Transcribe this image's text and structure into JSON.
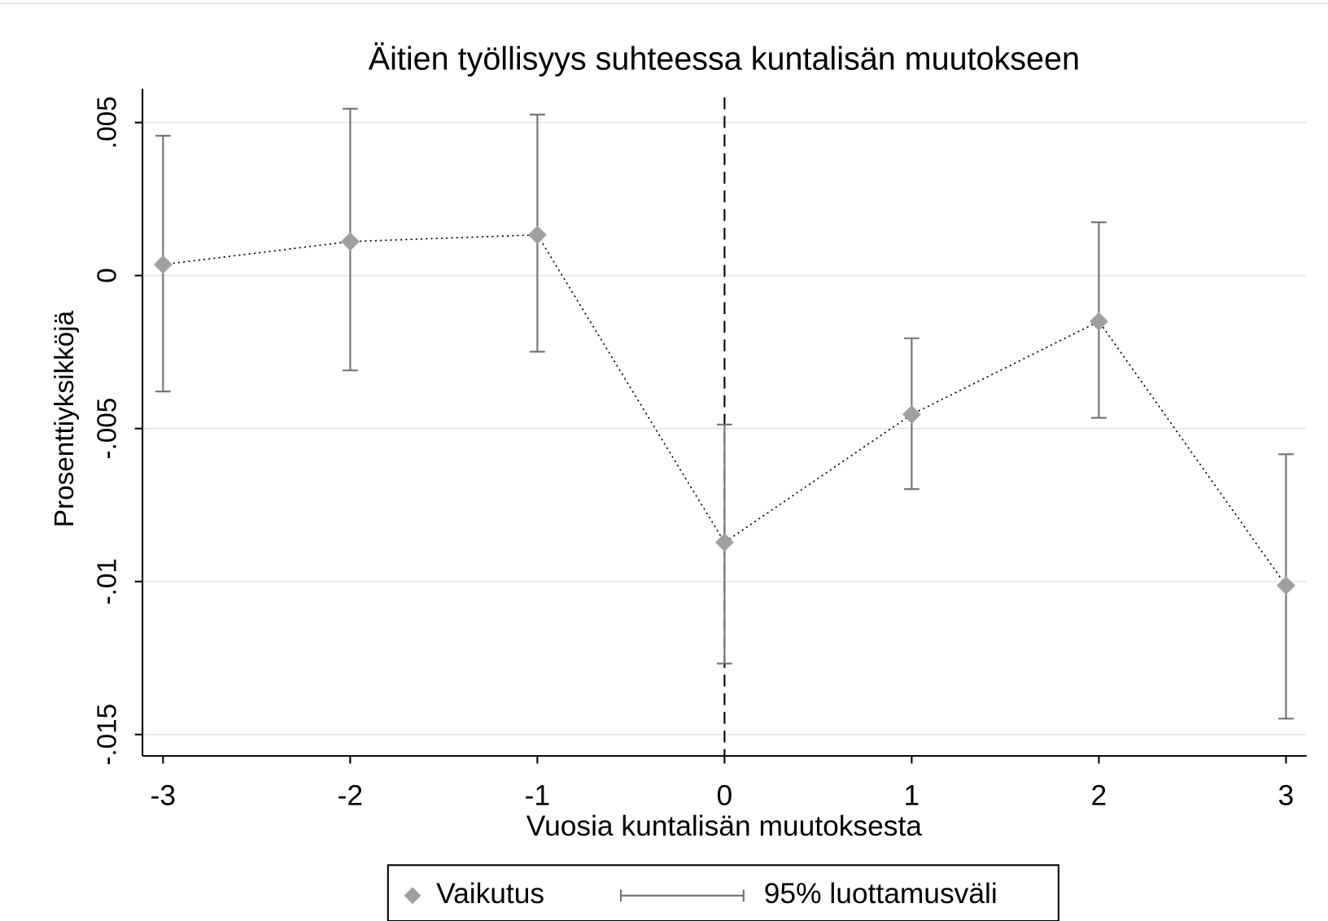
{
  "chart_data": {
    "type": "line",
    "title": "Äitien työllisyys suhteessa kuntalisän muutokseen",
    "x_label": "Vuosia kuntalisän muutoksesta",
    "y_label": "Prosenttiyksikköjä",
    "x": [
      -3,
      -2,
      -1,
      0,
      1,
      2,
      3
    ],
    "series": [
      {
        "name": "Vaikutus",
        "color": "#a0a0a0",
        "values": [
          0.00036,
          0.00111,
          0.00133,
          -0.00872,
          -0.00454,
          -0.0015,
          -0.01013
        ]
      },
      {
        "name": "95% luottamusväli",
        "color": "#707070",
        "low": [
          -0.00379,
          -0.0031,
          -0.00249,
          -0.01268,
          -0.00698,
          -0.00465,
          -0.01448
        ],
        "high": [
          0.00457,
          0.00545,
          0.00526,
          -0.00487,
          -0.00205,
          0.00174,
          -0.00584
        ]
      }
    ],
    "xlim": [
      -3.11,
      3.11
    ],
    "ylim": [
      -0.0157,
      0.0061
    ],
    "xticks": [
      -3,
      -2,
      -1,
      0,
      1,
      2,
      3
    ],
    "yticks": [
      {
        "value": 0.005,
        "label": ".005"
      },
      0,
      {
        "value": -0.005,
        "label": "-.005"
      },
      {
        "value": -0.01,
        "label": "-.01"
      },
      {
        "value": -0.015,
        "label": "-.015"
      }
    ],
    "vline": 0,
    "grid": true,
    "legend": "bottom"
  }
}
